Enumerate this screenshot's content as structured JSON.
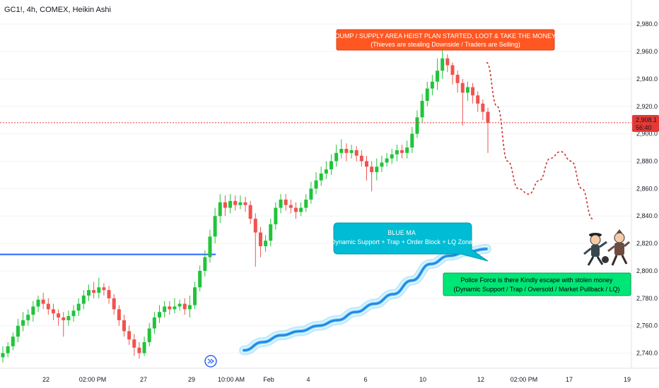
{
  "header": {
    "ticker_label": "GC1!, 4h, COMEX, Heikin Ashi"
  },
  "colors": {
    "up": "#26a69a",
    "up_bright": "#21c43a",
    "down": "#ef5350",
    "level_line": "#2962ff",
    "ma_band": "#4fc3f7",
    "ma_core": "#1e88e5",
    "current_price": "#e53935",
    "callout_red": "#ff5722",
    "callout_blue": "#00bcd4",
    "callout_green": "#00e676"
  },
  "price_axis": {
    "ticks": [
      "2,980.0",
      "2,960.0",
      "2,940.0",
      "2,920.0",
      "2,900.0",
      "2,880.0",
      "2,860.0",
      "2,840.0",
      "2,820.0",
      "2,800.0",
      "2,780.0",
      "2,760.0",
      "2,740.0"
    ],
    "current_price_label": "2,908.1",
    "countdown_label": "56:40"
  },
  "time_axis": {
    "ticks": [
      "22",
      "02:00 PM",
      "27",
      "29",
      "10:00 AM",
      "Feb",
      "4",
      "6",
      "10",
      "12",
      "02:00 PM",
      "17",
      "19"
    ]
  },
  "callouts": {
    "top_red": {
      "line1": "DUMP / SUPPLY AREA HEIST PLAN STARTED, LOOT & TAKE THE MONEY",
      "line2": "(Thieves are stealing Downside / Traders are Selling)"
    },
    "blue_ma": {
      "line1": "BLUE MA",
      "line2": "Dynamic Support + Trap + Order Block + LQ Zone"
    },
    "green": {
      "line1": "Police Force is there Kindly escape with stolen money",
      "line2": "(Dynamic Support / Trap / Oversold / Market Pullback / LQ)"
    }
  },
  "chart_data": {
    "type": "candlestick",
    "chart_style": "Heikin Ashi",
    "symbol": "GC1!",
    "interval": "4h",
    "exchange": "COMEX",
    "y_range": [
      2730,
      2995
    ],
    "current_price": 2908.1,
    "horizontal_level": 2812,
    "candles": [
      {
        "o": 2737,
        "c": 2740,
        "h": 2745,
        "l": 2733
      },
      {
        "o": 2740,
        "c": 2745,
        "h": 2748,
        "l": 2737
      },
      {
        "o": 2745,
        "c": 2752,
        "h": 2755,
        "l": 2742
      },
      {
        "o": 2752,
        "c": 2760,
        "h": 2765,
        "l": 2748
      },
      {
        "o": 2760,
        "c": 2764,
        "h": 2770,
        "l": 2756
      },
      {
        "o": 2764,
        "c": 2768,
        "h": 2772,
        "l": 2760
      },
      {
        "o": 2768,
        "c": 2774,
        "h": 2778,
        "l": 2763
      },
      {
        "o": 2774,
        "c": 2779,
        "h": 2782,
        "l": 2770
      },
      {
        "o": 2779,
        "c": 2776,
        "h": 2784,
        "l": 2772
      },
      {
        "o": 2776,
        "c": 2772,
        "h": 2780,
        "l": 2768
      },
      {
        "o": 2772,
        "c": 2769,
        "h": 2776,
        "l": 2764
      },
      {
        "o": 2769,
        "c": 2766,
        "h": 2772,
        "l": 2760
      },
      {
        "o": 2766,
        "c": 2764,
        "h": 2770,
        "l": 2752
      },
      {
        "o": 2764,
        "c": 2767,
        "h": 2771,
        "l": 2760
      },
      {
        "o": 2767,
        "c": 2771,
        "h": 2775,
        "l": 2763
      },
      {
        "o": 2771,
        "c": 2776,
        "h": 2780,
        "l": 2767
      },
      {
        "o": 2776,
        "c": 2782,
        "h": 2786,
        "l": 2772
      },
      {
        "o": 2782,
        "c": 2786,
        "h": 2790,
        "l": 2778
      },
      {
        "o": 2786,
        "c": 2784,
        "h": 2792,
        "l": 2780
      },
      {
        "o": 2784,
        "c": 2788,
        "h": 2795,
        "l": 2780
      },
      {
        "o": 2788,
        "c": 2786,
        "h": 2791,
        "l": 2782
      },
      {
        "o": 2786,
        "c": 2780,
        "h": 2789,
        "l": 2776
      },
      {
        "o": 2780,
        "c": 2772,
        "h": 2783,
        "l": 2768
      },
      {
        "o": 2772,
        "c": 2764,
        "h": 2775,
        "l": 2760
      },
      {
        "o": 2764,
        "c": 2756,
        "h": 2768,
        "l": 2752
      },
      {
        "o": 2756,
        "c": 2750,
        "h": 2760,
        "l": 2746
      },
      {
        "o": 2750,
        "c": 2744,
        "h": 2754,
        "l": 2738
      },
      {
        "o": 2744,
        "c": 2740,
        "h": 2748,
        "l": 2736
      },
      {
        "o": 2740,
        "c": 2748,
        "h": 2752,
        "l": 2738
      },
      {
        "o": 2748,
        "c": 2758,
        "h": 2762,
        "l": 2745
      },
      {
        "o": 2758,
        "c": 2766,
        "h": 2770,
        "l": 2754
      },
      {
        "o": 2766,
        "c": 2770,
        "h": 2775,
        "l": 2762
      },
      {
        "o": 2770,
        "c": 2774,
        "h": 2778,
        "l": 2766
      },
      {
        "o": 2774,
        "c": 2772,
        "h": 2778,
        "l": 2768
      },
      {
        "o": 2772,
        "c": 2774,
        "h": 2780,
        "l": 2769
      },
      {
        "o": 2774,
        "c": 2776,
        "h": 2779,
        "l": 2771
      },
      {
        "o": 2776,
        "c": 2772,
        "h": 2780,
        "l": 2768
      },
      {
        "o": 2772,
        "c": 2775,
        "h": 2782,
        "l": 2766
      },
      {
        "o": 2775,
        "c": 2788,
        "h": 2792,
        "l": 2772
      },
      {
        "o": 2788,
        "c": 2800,
        "h": 2804,
        "l": 2785
      },
      {
        "o": 2800,
        "c": 2810,
        "h": 2815,
        "l": 2796
      },
      {
        "o": 2810,
        "c": 2825,
        "h": 2830,
        "l": 2806
      },
      {
        "o": 2825,
        "c": 2840,
        "h": 2846,
        "l": 2820
      },
      {
        "o": 2840,
        "c": 2850,
        "h": 2856,
        "l": 2835
      },
      {
        "o": 2850,
        "c": 2846,
        "h": 2855,
        "l": 2840
      },
      {
        "o": 2846,
        "c": 2851,
        "h": 2856,
        "l": 2842
      },
      {
        "o": 2851,
        "c": 2848,
        "h": 2855,
        "l": 2844
      },
      {
        "o": 2848,
        "c": 2850,
        "h": 2855,
        "l": 2845
      },
      {
        "o": 2850,
        "c": 2848,
        "h": 2854,
        "l": 2843
      },
      {
        "o": 2848,
        "c": 2838,
        "h": 2851,
        "l": 2834
      },
      {
        "o": 2838,
        "c": 2828,
        "h": 2842,
        "l": 2803
      },
      {
        "o": 2828,
        "c": 2818,
        "h": 2832,
        "l": 2810
      },
      {
        "o": 2818,
        "c": 2822,
        "h": 2826,
        "l": 2814
      },
      {
        "o": 2822,
        "c": 2834,
        "h": 2838,
        "l": 2818
      },
      {
        "o": 2834,
        "c": 2846,
        "h": 2850,
        "l": 2830
      },
      {
        "o": 2846,
        "c": 2852,
        "h": 2856,
        "l": 2842
      },
      {
        "o": 2852,
        "c": 2848,
        "h": 2856,
        "l": 2844
      },
      {
        "o": 2848,
        "c": 2846,
        "h": 2852,
        "l": 2842
      },
      {
        "o": 2846,
        "c": 2843,
        "h": 2850,
        "l": 2838
      },
      {
        "o": 2843,
        "c": 2846,
        "h": 2850,
        "l": 2840
      },
      {
        "o": 2846,
        "c": 2852,
        "h": 2856,
        "l": 2843
      },
      {
        "o": 2852,
        "c": 2860,
        "h": 2865,
        "l": 2849
      },
      {
        "o": 2860,
        "c": 2866,
        "h": 2872,
        "l": 2856
      },
      {
        "o": 2866,
        "c": 2871,
        "h": 2876,
        "l": 2862
      },
      {
        "o": 2871,
        "c": 2874,
        "h": 2880,
        "l": 2867
      },
      {
        "o": 2874,
        "c": 2880,
        "h": 2885,
        "l": 2870
      },
      {
        "o": 2880,
        "c": 2886,
        "h": 2892,
        "l": 2876
      },
      {
        "o": 2886,
        "c": 2889,
        "h": 2896,
        "l": 2882
      },
      {
        "o": 2889,
        "c": 2886,
        "h": 2893,
        "l": 2880
      },
      {
        "o": 2886,
        "c": 2888,
        "h": 2892,
        "l": 2882
      },
      {
        "o": 2888,
        "c": 2884,
        "h": 2891,
        "l": 2880
      },
      {
        "o": 2884,
        "c": 2880,
        "h": 2888,
        "l": 2876
      },
      {
        "o": 2880,
        "c": 2876,
        "h": 2884,
        "l": 2866
      },
      {
        "o": 2876,
        "c": 2872,
        "h": 2880,
        "l": 2858
      },
      {
        "o": 2872,
        "c": 2876,
        "h": 2882,
        "l": 2866
      },
      {
        "o": 2876,
        "c": 2879,
        "h": 2884,
        "l": 2872
      },
      {
        "o": 2879,
        "c": 2882,
        "h": 2886,
        "l": 2876
      },
      {
        "o": 2882,
        "c": 2885,
        "h": 2889,
        "l": 2878
      },
      {
        "o": 2885,
        "c": 2888,
        "h": 2892,
        "l": 2880
      },
      {
        "o": 2888,
        "c": 2886,
        "h": 2892,
        "l": 2882
      },
      {
        "o": 2886,
        "c": 2890,
        "h": 2895,
        "l": 2882
      },
      {
        "o": 2890,
        "c": 2900,
        "h": 2905,
        "l": 2886
      },
      {
        "o": 2900,
        "c": 2912,
        "h": 2917,
        "l": 2897
      },
      {
        "o": 2912,
        "c": 2924,
        "h": 2929,
        "l": 2908
      },
      {
        "o": 2924,
        "c": 2933,
        "h": 2938,
        "l": 2920
      },
      {
        "o": 2933,
        "c": 2938,
        "h": 2943,
        "l": 2928
      },
      {
        "o": 2938,
        "c": 2946,
        "h": 2955,
        "l": 2932
      },
      {
        "o": 2946,
        "c": 2955,
        "h": 2962,
        "l": 2940
      },
      {
        "o": 2955,
        "c": 2950,
        "h": 2958,
        "l": 2945
      },
      {
        "o": 2950,
        "c": 2943,
        "h": 2952,
        "l": 2936
      },
      {
        "o": 2943,
        "c": 2937,
        "h": 2946,
        "l": 2930
      },
      {
        "o": 2937,
        "c": 2930,
        "h": 2940,
        "l": 2906
      },
      {
        "o": 2930,
        "c": 2934,
        "h": 2938,
        "l": 2924
      },
      {
        "o": 2934,
        "c": 2928,
        "h": 2937,
        "l": 2922
      },
      {
        "o": 2928,
        "c": 2922,
        "h": 2931,
        "l": 2916
      },
      {
        "o": 2922,
        "c": 2916,
        "h": 2925,
        "l": 2910
      },
      {
        "o": 2916,
        "c": 2908,
        "h": 2919,
        "l": 2886
      }
    ],
    "moving_average": [
      [
        2730,
        2742
      ],
      [
        2745,
        2748
      ],
      [
        2755,
        2753
      ],
      [
        2765,
        2756
      ],
      [
        2775,
        2760
      ],
      [
        2785,
        2764
      ],
      [
        2795,
        2770
      ],
      [
        2800,
        2776
      ],
      [
        2805,
        2783
      ],
      [
        2810,
        2793
      ],
      [
        2813,
        2805
      ],
      [
        2815,
        2811
      ],
      [
        2817,
        2814
      ],
      [
        2818,
        2816
      ]
    ],
    "projection_path": [
      [
        2962,
        2952
      ],
      [
        2969,
        2920
      ],
      [
        2976,
        2880
      ],
      [
        2983,
        2860
      ],
      [
        2990,
        2856
      ],
      [
        2997,
        2866
      ],
      [
        3004,
        2882
      ],
      [
        3011,
        2887
      ],
      [
        3018,
        2880
      ],
      [
        3025,
        2860
      ],
      [
        3032,
        2838
      ]
    ]
  }
}
